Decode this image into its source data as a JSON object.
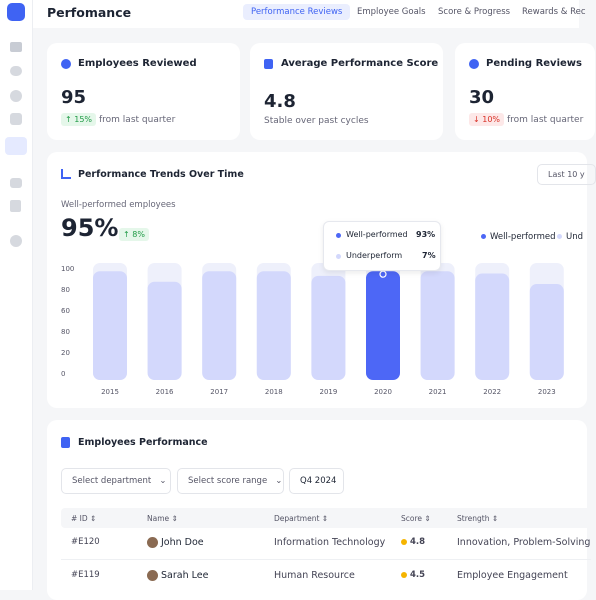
{
  "header": {
    "title": "Perfomance",
    "tabs": [
      "Performance Reviews",
      "Employee Goals",
      "Score & Progress",
      "Rewards & Rec"
    ]
  },
  "stats": [
    {
      "title": "Employees Reviewed",
      "value": "95",
      "change": "↑ 15%",
      "note": "from last quarter"
    },
    {
      "title": "Average Performance Score",
      "value": "4.8",
      "note": "Stable over past cycles"
    },
    {
      "title": "Pending Reviews",
      "value": "30",
      "change": "↓ 10%",
      "note": "from last quarter"
    }
  ],
  "trend": {
    "title": "Performance Trends Over Time",
    "range": "Last 10 y",
    "subtitle": "Well-performed employees",
    "value": "95%",
    "change": "↑ 8%",
    "tooltip": {
      "rows": [
        {
          "label": "Well-performed",
          "value": "93%"
        },
        {
          "label": "Underperform",
          "value": "7%"
        }
      ]
    },
    "legend": [
      "Well-performed",
      "Und"
    ],
    "y_labels": [
      "100",
      "80",
      "60",
      "80",
      "20",
      "0"
    ],
    "categories": [
      "2015",
      "2016",
      "2017",
      "2018",
      "2019",
      "2020",
      "2021",
      "2022",
      "2023"
    ],
    "values": [
      93,
      84,
      93,
      93,
      89,
      93,
      93,
      91,
      82
    ],
    "ylim": [
      0,
      100
    ],
    "bar_colors": [
      "#d3d8fc",
      "#d3d8fc",
      "#d3d8fc",
      "#d3d8fc",
      "#d3d8fc",
      "#4d67f6",
      "#d3d8fc",
      "#d3d8fc",
      "#d3d8fc"
    ]
  },
  "table": {
    "title": "Employees Performance",
    "filters": [
      "Select department",
      "Select score range",
      "Q4 2024"
    ],
    "columns": [
      "# ID",
      "Name",
      "Department",
      "Score",
      "Strength"
    ],
    "rows": [
      [
        "#E120",
        "John Doe",
        "Information Technology",
        "4.8",
        "Innovation, Problem-Solving"
      ],
      [
        "#E119",
        "Sarah Lee",
        "Human Resource",
        "4.5",
        "Employee Engagement"
      ]
    ]
  }
}
